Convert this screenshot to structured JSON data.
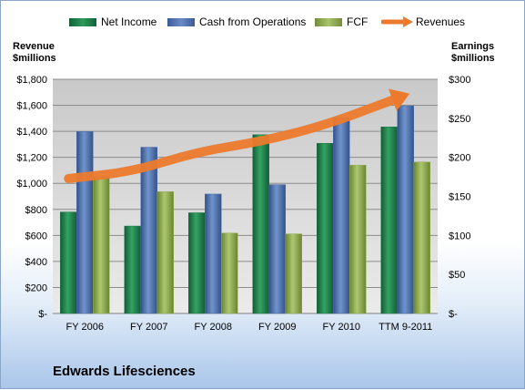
{
  "chart_data": {
    "type": "bar",
    "title": "Edwards Lifesciences",
    "categories": [
      "FY 2006",
      "FY 2007",
      "FY 2008",
      "FY 2009",
      "FY 2010",
      "TTM 9-2011"
    ],
    "left_axis": {
      "label_line1": "Revenue",
      "label_line2": "$millions",
      "ticks": [
        "$-",
        "$200",
        "$400",
        "$600",
        "$800",
        "$1,000",
        "$1,200",
        "$1,400",
        "$1,600",
        "$1,800"
      ],
      "ylim": [
        0,
        1800
      ]
    },
    "right_axis": {
      "label_line1": "Earnings",
      "label_line2": "$millions",
      "ticks": [
        "$-",
        "$50",
        "$100",
        "$150",
        "$200",
        "$250",
        "$300"
      ],
      "ylim": [
        0,
        300
      ]
    },
    "series": [
      {
        "name": "Net Income",
        "axis": "right",
        "kind": "bar",
        "color": "#1e7a45",
        "values": [
          130,
          112,
          129,
          229,
          218,
          239
        ]
      },
      {
        "name": "Cash from Operations",
        "axis": "right",
        "kind": "bar",
        "color": "#4a6fae",
        "values": [
          233,
          213,
          153,
          165,
          251,
          266
        ]
      },
      {
        "name": "FCF",
        "axis": "right",
        "kind": "bar",
        "color": "#8fae4e",
        "values": [
          176,
          156,
          103,
          102,
          190,
          194
        ]
      },
      {
        "name": "Revenues",
        "axis": "left",
        "kind": "line",
        "color": "#ec7a2c",
        "values": [
          1037,
          1090,
          1242,
          1321,
          1447,
          1631
        ]
      }
    ],
    "legend_position": "top",
    "grid": true
  }
}
